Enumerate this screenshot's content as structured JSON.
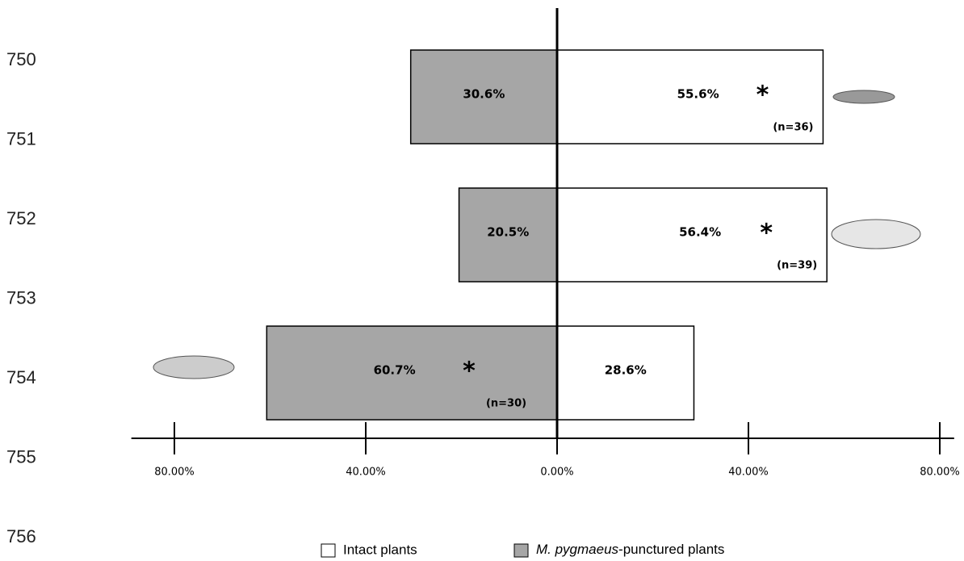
{
  "line_numbers": [
    "750",
    "751",
    "752",
    "753",
    "754",
    "755",
    "756"
  ],
  "chart_data": {
    "type": "diverging-bar",
    "categories": [
      null,
      null,
      null
    ],
    "series": [
      {
        "name": "Intact plants",
        "color": "#ffffff",
        "side": "right",
        "values": [
          55.6,
          56.4,
          28.6
        ],
        "value_labels": [
          "55.6%",
          "56.4%",
          "28.6%"
        ]
      },
      {
        "name": "M. pygmaeus-punctured plants",
        "color": "#a6a6a6",
        "side": "left",
        "values": [
          30.6,
          20.5,
          60.7
        ],
        "value_labels": [
          "30.6%",
          "20.5%",
          "60.7%"
        ]
      }
    ],
    "significance": [
      "*",
      "*",
      "*"
    ],
    "significant_series": [
      0,
      0,
      1
    ],
    "n_labels": [
      "(n=36)",
      "(n=39)",
      "(n=30)"
    ],
    "xlim": [
      -89,
      83
    ],
    "xticks": [
      {
        "value": -80,
        "label": "80.00%"
      },
      {
        "value": -40,
        "label": "40.00%"
      },
      {
        "value": 0,
        "label": "0.00%"
      },
      {
        "value": 40,
        "label": "40.00%"
      },
      {
        "value": 80,
        "label": "80.00%"
      }
    ],
    "legend": "bottom"
  }
}
